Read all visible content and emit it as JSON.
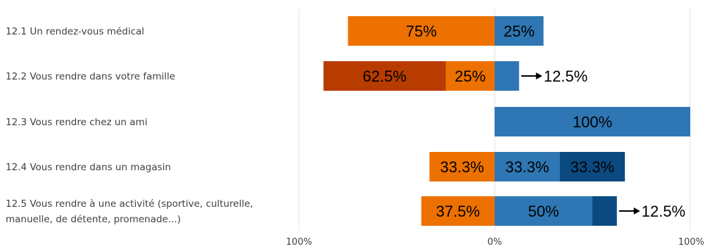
{
  "chart_data": {
    "type": "bar",
    "orientation": "horizontal",
    "layout": "diverging-stacked",
    "categories": [
      [
        "12.1 Un rendez-vous médical"
      ],
      [
        "12.2 Vous rendre dans votre famille"
      ],
      [
        "12.3 Vous rendre chez un ami"
      ],
      [
        "12.4 Vous rendre dans un magasin"
      ],
      [
        "12.5 Vous rendre à une activité (sportive, culturelle,",
        "manuelle, de détente, promenade...)"
      ]
    ],
    "x_ticks": [
      "100%",
      "0%",
      "100%"
    ],
    "xlim": [
      -100,
      100
    ],
    "series": [
      {
        "side": "negative",
        "color": "#b83c00",
        "values": [
          0,
          62.5,
          0,
          0,
          0
        ],
        "labels": [
          "",
          "62.5%",
          "",
          "",
          ""
        ]
      },
      {
        "side": "negative",
        "color": "#ed7100",
        "values": [
          75,
          25,
          0,
          33.3,
          37.5
        ],
        "labels": [
          "75%",
          "25%",
          "",
          "33.3%",
          "37.5%"
        ]
      },
      {
        "side": "positive",
        "color": "#2e77b4",
        "values": [
          25,
          12.5,
          100,
          33.3,
          50
        ],
        "labels": [
          "25%",
          "12.5%",
          "100%",
          "33.3%",
          "50%"
        ]
      },
      {
        "side": "positive",
        "color": "#0b4a80",
        "values": [
          0,
          0,
          0,
          33.3,
          12.5
        ],
        "labels": [
          "",
          "",
          "",
          "33.3%",
          "12.5%"
        ]
      }
    ],
    "grid": true
  }
}
